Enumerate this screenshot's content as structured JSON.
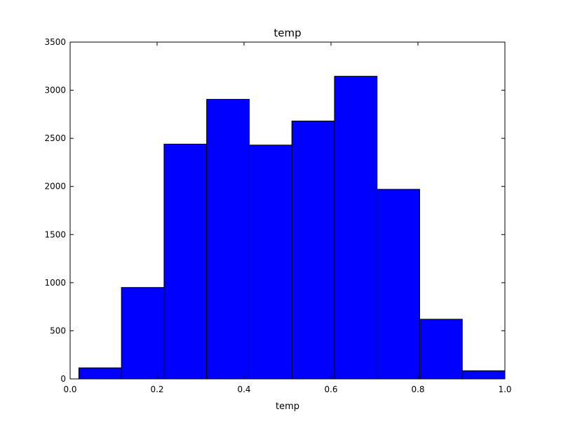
{
  "chart_data": {
    "type": "bar",
    "title": "temp",
    "xlabel": "temp",
    "ylabel": "",
    "xlim": [
      0.0,
      1.0
    ],
    "ylim": [
      0,
      3500
    ],
    "xticks": [
      "0.0",
      "0.2",
      "0.4",
      "0.6",
      "0.8",
      "1.0"
    ],
    "yticks": [
      "0",
      "500",
      "1000",
      "1500",
      "2000",
      "2500",
      "3000",
      "3500"
    ],
    "bin_edges": [
      0.02,
      0.118,
      0.216,
      0.314,
      0.412,
      0.51,
      0.608,
      0.706,
      0.804,
      0.902,
      1.0
    ],
    "values": [
      115,
      950,
      2440,
      2905,
      2430,
      2680,
      3145,
      1970,
      620,
      85
    ],
    "bar_color": "#0000ff",
    "edge_color": "#000000",
    "grid": false
  }
}
